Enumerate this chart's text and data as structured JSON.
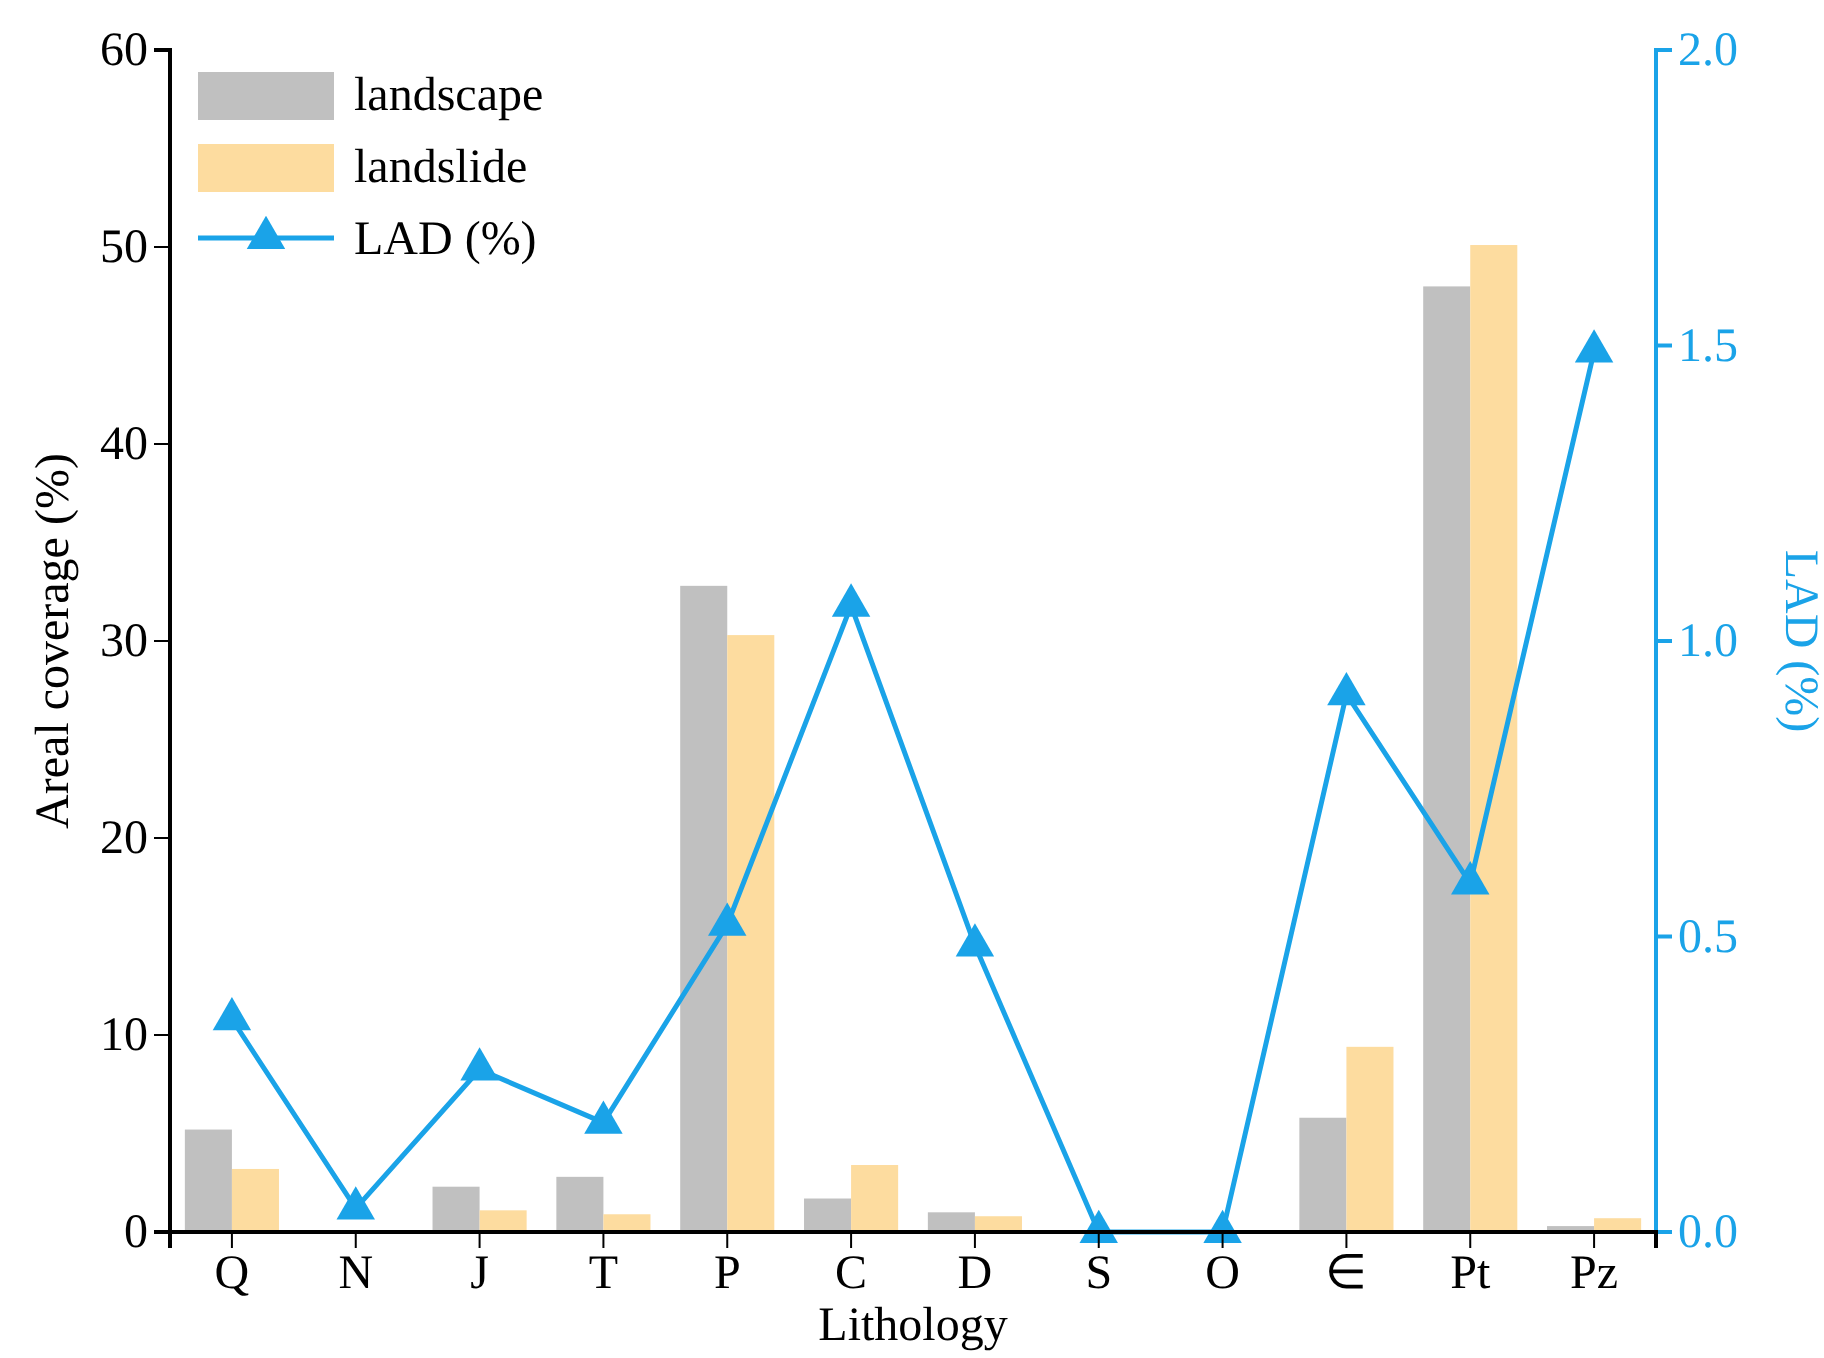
{
  "chart_data": {
    "type": "bar",
    "xlabel": "Lithology",
    "ylabel": "Areal coverage (%)",
    "y2label": "LAD (%)",
    "categories": [
      "Q",
      "N",
      "J",
      "T",
      "P",
      "C",
      "D",
      "S",
      "O",
      "∈",
      "Pt",
      "Pz"
    ],
    "series": [
      {
        "name": "landscape",
        "color": "#c0c0c0",
        "values": [
          5.2,
          0,
          2.3,
          2.8,
          32.8,
          1.7,
          1.0,
          0,
          0,
          5.8,
          48.0,
          0.3
        ]
      },
      {
        "name": "landslide",
        "color": "#fddc9f",
        "values": [
          3.2,
          0,
          1.1,
          0.9,
          30.3,
          3.4,
          0.8,
          0,
          0,
          9.4,
          50.1,
          0.7
        ]
      },
      {
        "name": "LAD (%)",
        "type": "line",
        "axis": "y2",
        "color": "#1aa3e8",
        "marker": "triangle",
        "values": [
          0.36,
          0.04,
          0.275,
          0.185,
          0.52,
          1.06,
          0.485,
          0,
          0,
          0.91,
          0.59,
          1.49
        ]
      }
    ],
    "ylim": [
      0,
      60
    ],
    "yticks": [
      0,
      10,
      20,
      30,
      40,
      50,
      60
    ],
    "y2lim": [
      0,
      2
    ],
    "y2ticks": [
      {
        "value": 0,
        "label": "0.0"
      },
      {
        "value": 0.5,
        "label": "0.5"
      },
      {
        "value": 1,
        "label": "1.0"
      },
      {
        "value": 1.5,
        "label": "1.5"
      },
      {
        "value": 2,
        "label": "2.0"
      }
    ],
    "legend": "top left",
    "grid": false
  }
}
